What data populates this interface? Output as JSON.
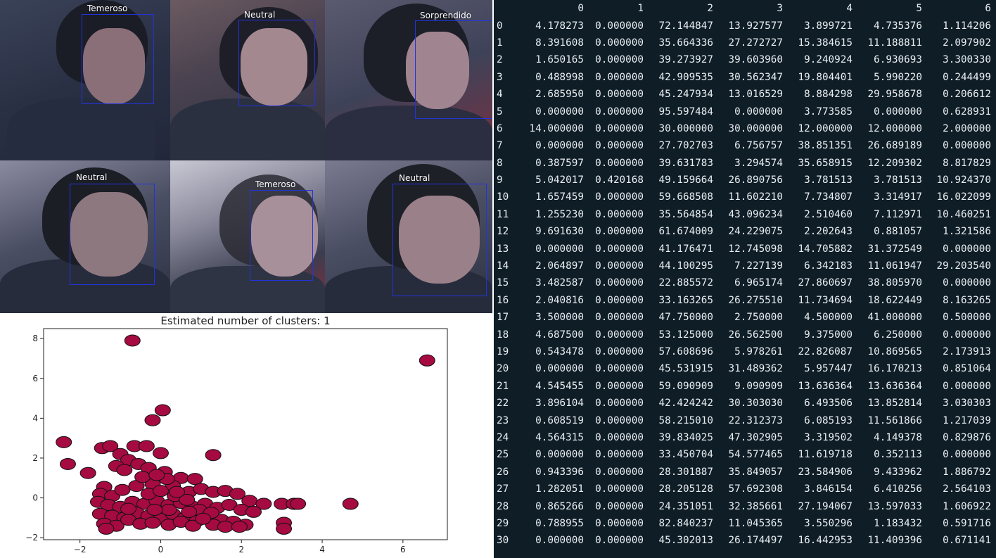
{
  "faces": [
    {
      "label": "Temeroso"
    },
    {
      "label": "Neutral"
    },
    {
      "label": "Sorprendido"
    },
    {
      "label": "Neutral"
    },
    {
      "label": "Temeroso"
    },
    {
      "label": "Neutral"
    }
  ],
  "chart_data": {
    "type": "scatter",
    "title": "Estimated number of clusters: 1",
    "xlabel": "",
    "ylabel": "",
    "xlim": [
      -2.9,
      7.1
    ],
    "ylim": [
      -2.1,
      8.5
    ],
    "xticks": [
      -2,
      0,
      2,
      4,
      6
    ],
    "yticks": [
      -2,
      0,
      2,
      4,
      6,
      8
    ],
    "grid": false,
    "point_color": "#a50a40",
    "points": [
      [
        -0.7,
        7.9
      ],
      [
        6.6,
        6.9
      ],
      [
        0.05,
        4.4
      ],
      [
        -0.2,
        3.9
      ],
      [
        -2.4,
        2.8
      ],
      [
        -2.3,
        1.7
      ],
      [
        -1.8,
        1.25
      ],
      [
        1.3,
        2.15
      ],
      [
        0.0,
        2.25
      ],
      [
        -1.45,
        2.5
      ],
      [
        -1.25,
        2.6
      ],
      [
        -0.65,
        2.6
      ],
      [
        -0.35,
        2.6
      ],
      [
        -1.0,
        2.2
      ],
      [
        -0.8,
        1.9
      ],
      [
        -0.55,
        1.7
      ],
      [
        -1.1,
        1.6
      ],
      [
        -0.9,
        1.4
      ],
      [
        -0.3,
        1.5
      ],
      [
        0.1,
        1.3
      ],
      [
        0.5,
        1.0
      ],
      [
        0.85,
        0.95
      ],
      [
        -1.4,
        0.55
      ],
      [
        -1.5,
        0.2
      ],
      [
        -1.2,
        0.1
      ],
      [
        -0.95,
        0.4
      ],
      [
        -0.6,
        0.6
      ],
      [
        -0.2,
        0.7
      ],
      [
        0.3,
        0.6
      ],
      [
        0.7,
        0.3
      ],
      [
        1.0,
        0.45
      ],
      [
        1.3,
        0.3
      ],
      [
        1.6,
        0.35
      ],
      [
        1.9,
        0.2
      ],
      [
        2.2,
        -0.15
      ],
      [
        2.55,
        -0.3
      ],
      [
        3.0,
        -0.3
      ],
      [
        3.3,
        -0.3
      ],
      [
        3.4,
        -0.3
      ],
      [
        4.7,
        -0.3
      ],
      [
        -1.55,
        -0.2
      ],
      [
        -1.3,
        -0.35
      ],
      [
        -1.0,
        -0.45
      ],
      [
        -0.7,
        -0.2
      ],
      [
        -0.4,
        -0.3
      ],
      [
        -0.1,
        -0.15
      ],
      [
        0.2,
        -0.35
      ],
      [
        0.5,
        -0.25
      ],
      [
        0.8,
        -0.45
      ],
      [
        1.1,
        -0.3
      ],
      [
        1.4,
        -0.5
      ],
      [
        1.7,
        -0.35
      ],
      [
        2.0,
        -0.6
      ],
      [
        2.3,
        -0.7
      ],
      [
        -1.5,
        -0.8
      ],
      [
        -1.2,
        -0.9
      ],
      [
        -0.9,
        -1.0
      ],
      [
        -0.6,
        -0.75
      ],
      [
        -0.3,
        -0.9
      ],
      [
        0.0,
        -1.05
      ],
      [
        0.3,
        -0.8
      ],
      [
        0.6,
        -1.0
      ],
      [
        0.9,
        -1.15
      ],
      [
        1.2,
        -0.9
      ],
      [
        1.5,
        -1.1
      ],
      [
        1.8,
        -1.2
      ],
      [
        2.1,
        -1.35
      ],
      [
        -1.4,
        -1.3
      ],
      [
        -1.1,
        -1.4
      ],
      [
        -0.8,
        -1.1
      ],
      [
        -0.5,
        -1.3
      ],
      [
        -0.2,
        -1.25
      ],
      [
        0.2,
        -1.35
      ],
      [
        0.5,
        -1.2
      ],
      [
        0.8,
        -1.4
      ],
      [
        1.3,
        -1.35
      ],
      [
        1.6,
        -1.45
      ],
      [
        1.95,
        -1.45
      ],
      [
        3.05,
        -1.25
      ],
      [
        3.05,
        -1.55
      ],
      [
        -1.35,
        -1.55
      ],
      [
        -0.3,
        0.2
      ],
      [
        0.0,
        0.35
      ],
      [
        0.35,
        0.1
      ],
      [
        0.65,
        -0.1
      ],
      [
        0.95,
        -0.6
      ],
      [
        1.25,
        -0.75
      ],
      [
        -0.8,
        -0.55
      ],
      [
        0.15,
        0.95
      ],
      [
        0.4,
        0.3
      ],
      [
        -0.45,
        1.05
      ],
      [
        -0.1,
        1.15
      ],
      [
        0.2,
        -0.6
      ],
      [
        -0.15,
        -0.6
      ],
      [
        1.05,
        -1.05
      ],
      [
        0.7,
        -0.7
      ]
    ]
  },
  "table": {
    "columns": [
      "0",
      "1",
      "2",
      "3",
      "4",
      "5",
      "6"
    ],
    "rows": [
      {
        "index": "0",
        "values": [
          "4.178273",
          "0.000000",
          "72.144847",
          "13.927577",
          "3.899721",
          "4.735376",
          "1.114206"
        ]
      },
      {
        "index": "1",
        "values": [
          "8.391608",
          "0.000000",
          "35.664336",
          "27.272727",
          "15.384615",
          "11.188811",
          "2.097902"
        ]
      },
      {
        "index": "2",
        "values": [
          "1.650165",
          "0.000000",
          "39.273927",
          "39.603960",
          "9.240924",
          "6.930693",
          "3.300330"
        ]
      },
      {
        "index": "3",
        "values": [
          "0.488998",
          "0.000000",
          "42.909535",
          "30.562347",
          "19.804401",
          "5.990220",
          "0.244499"
        ]
      },
      {
        "index": "4",
        "values": [
          "2.685950",
          "0.000000",
          "45.247934",
          "13.016529",
          "8.884298",
          "29.958678",
          "0.206612"
        ]
      },
      {
        "index": "5",
        "values": [
          "0.000000",
          "0.000000",
          "95.597484",
          "0.000000",
          "3.773585",
          "0.000000",
          "0.628931"
        ]
      },
      {
        "index": "6",
        "values": [
          "14.000000",
          "0.000000",
          "30.000000",
          "30.000000",
          "12.000000",
          "12.000000",
          "2.000000"
        ]
      },
      {
        "index": "7",
        "values": [
          "0.000000",
          "0.000000",
          "27.702703",
          "6.756757",
          "38.851351",
          "26.689189",
          "0.000000"
        ]
      },
      {
        "index": "8",
        "values": [
          "0.387597",
          "0.000000",
          "39.631783",
          "3.294574",
          "35.658915",
          "12.209302",
          "8.817829"
        ]
      },
      {
        "index": "9",
        "values": [
          "5.042017",
          "0.420168",
          "49.159664",
          "26.890756",
          "3.781513",
          "3.781513",
          "10.924370"
        ]
      },
      {
        "index": "10",
        "values": [
          "1.657459",
          "0.000000",
          "59.668508",
          "11.602210",
          "7.734807",
          "3.314917",
          "16.022099"
        ]
      },
      {
        "index": "11",
        "values": [
          "1.255230",
          "0.000000",
          "35.564854",
          "43.096234",
          "2.510460",
          "7.112971",
          "10.460251"
        ]
      },
      {
        "index": "12",
        "values": [
          "9.691630",
          "0.000000",
          "61.674009",
          "24.229075",
          "2.202643",
          "0.881057",
          "1.321586"
        ]
      },
      {
        "index": "13",
        "values": [
          "0.000000",
          "0.000000",
          "41.176471",
          "12.745098",
          "14.705882",
          "31.372549",
          "0.000000"
        ]
      },
      {
        "index": "14",
        "values": [
          "2.064897",
          "0.000000",
          "44.100295",
          "7.227139",
          "6.342183",
          "11.061947",
          "29.203540"
        ]
      },
      {
        "index": "15",
        "values": [
          "3.482587",
          "0.000000",
          "22.885572",
          "6.965174",
          "27.860697",
          "38.805970",
          "0.000000"
        ]
      },
      {
        "index": "16",
        "values": [
          "2.040816",
          "0.000000",
          "33.163265",
          "26.275510",
          "11.734694",
          "18.622449",
          "8.163265"
        ]
      },
      {
        "index": "17",
        "values": [
          "3.500000",
          "0.000000",
          "47.750000",
          "2.750000",
          "4.500000",
          "41.000000",
          "0.500000"
        ]
      },
      {
        "index": "18",
        "values": [
          "4.687500",
          "0.000000",
          "53.125000",
          "26.562500",
          "9.375000",
          "6.250000",
          "0.000000"
        ]
      },
      {
        "index": "19",
        "values": [
          "0.543478",
          "0.000000",
          "57.608696",
          "5.978261",
          "22.826087",
          "10.869565",
          "2.173913"
        ]
      },
      {
        "index": "20",
        "values": [
          "0.000000",
          "0.000000",
          "45.531915",
          "31.489362",
          "5.957447",
          "16.170213",
          "0.851064"
        ]
      },
      {
        "index": "21",
        "values": [
          "4.545455",
          "0.000000",
          "59.090909",
          "9.090909",
          "13.636364",
          "13.636364",
          "0.000000"
        ]
      },
      {
        "index": "22",
        "values": [
          "3.896104",
          "0.000000",
          "42.424242",
          "30.303030",
          "6.493506",
          "13.852814",
          "3.030303"
        ]
      },
      {
        "index": "23",
        "values": [
          "0.608519",
          "0.000000",
          "58.215010",
          "22.312373",
          "6.085193",
          "11.561866",
          "1.217039"
        ]
      },
      {
        "index": "24",
        "values": [
          "4.564315",
          "0.000000",
          "39.834025",
          "47.302905",
          "3.319502",
          "4.149378",
          "0.829876"
        ]
      },
      {
        "index": "25",
        "values": [
          "0.000000",
          "0.000000",
          "33.450704",
          "54.577465",
          "11.619718",
          "0.352113",
          "0.000000"
        ]
      },
      {
        "index": "26",
        "values": [
          "0.943396",
          "0.000000",
          "28.301887",
          "35.849057",
          "23.584906",
          "9.433962",
          "1.886792"
        ]
      },
      {
        "index": "27",
        "values": [
          "1.282051",
          "0.000000",
          "28.205128",
          "57.692308",
          "3.846154",
          "6.410256",
          "2.564103"
        ]
      },
      {
        "index": "28",
        "values": [
          "0.865266",
          "0.000000",
          "24.351051",
          "32.385661",
          "27.194067",
          "13.597033",
          "1.606922"
        ]
      },
      {
        "index": "29",
        "values": [
          "0.788955",
          "0.000000",
          "82.840237",
          "11.045365",
          "3.550296",
          "1.183432",
          "0.591716"
        ]
      },
      {
        "index": "30",
        "values": [
          "0.000000",
          "0.000000",
          "45.302013",
          "26.174497",
          "16.442953",
          "11.409396",
          "0.671141"
        ]
      }
    ]
  }
}
